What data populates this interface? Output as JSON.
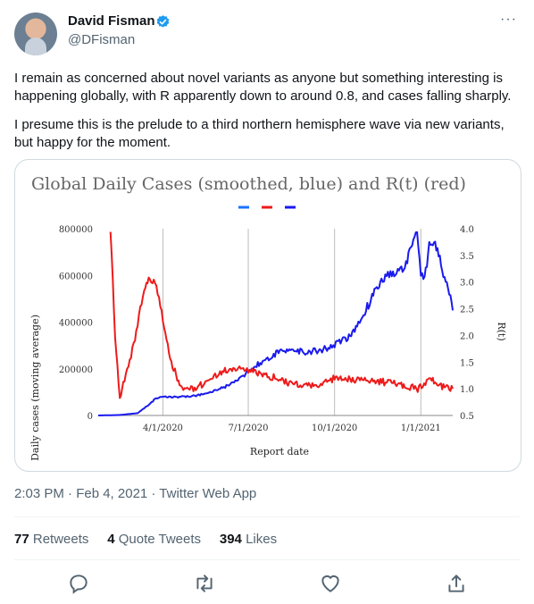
{
  "tweet": {
    "author_name": "David Fisman",
    "author_handle": "@DFisman",
    "paragraphs": [
      "I remain as concerned about novel variants as anyone but something interesting is happening globally, with R apparently down to around 0.8, and cases falling sharply.",
      "I presume this is the prelude to a third northern hemisphere wave via new variants, but happy for the moment."
    ],
    "timestamp": "2:03 PM · Feb 4, 2021 · Twitter Web App",
    "stats": {
      "retweets_count": "77",
      "retweets_label": "Retweets",
      "quotes_count": "4",
      "quotes_label": "Quote Tweets",
      "likes_count": "394",
      "likes_label": "Likes"
    },
    "colors": {
      "verified": "#1d9bf0",
      "text": "#0f1419",
      "secondary": "#536471",
      "border": "#cfd9de"
    },
    "icons": [
      "verified-badge-icon",
      "more-icon",
      "reply-icon",
      "retweet-icon",
      "like-icon",
      "share-icon"
    ]
  },
  "chart_data": {
    "type": "line",
    "title": "Global Daily Cases (smoothed, blue) and R(t) (red)",
    "xlabel": "Report date",
    "ylabel": "Daily cases (moving average)",
    "y2label": "R(t)",
    "x_ticks": [
      "4/1/2020",
      "7/1/2020",
      "10/1/2020",
      "1/1/2021"
    ],
    "y_ticks": [
      "0",
      "200000",
      "400000",
      "600000",
      "800000"
    ],
    "y2_ticks": [
      "0.5",
      "1.0",
      "1.5",
      "2.0",
      "2.5",
      "3.0",
      "3.5",
      "4.0"
    ],
    "ylim": [
      0,
      800000
    ],
    "y2lim": [
      0.5,
      4.0
    ],
    "xlim": [
      "2020-01-23",
      "2021-02-04"
    ],
    "legend": "top-center",
    "grid": "vertical",
    "series": [
      {
        "color": "#1a1aee",
        "axis": "left",
        "x": [
          "2020-01-23",
          "2020-02-15",
          "2020-03-05",
          "2020-03-15",
          "2020-03-25",
          "2020-04-05",
          "2020-04-20",
          "2020-05-05",
          "2020-05-20",
          "2020-06-05",
          "2020-06-20",
          "2020-07-01",
          "2020-07-15",
          "2020-08-01",
          "2020-08-15",
          "2020-09-01",
          "2020-09-15",
          "2020-10-01",
          "2020-10-15",
          "2020-10-25",
          "2020-11-01",
          "2020-11-10",
          "2020-11-20",
          "2020-12-01",
          "2020-12-10",
          "2020-12-15",
          "2020-12-20",
          "2020-12-28",
          "2021-01-01",
          "2021-01-05",
          "2021-01-10",
          "2021-01-15",
          "2021-01-20",
          "2021-01-25",
          "2021-01-30",
          "2021-02-04"
        ],
        "values": [
          0,
          2000,
          10000,
          40000,
          75000,
          80000,
          80000,
          85000,
          95000,
          120000,
          150000,
          190000,
          230000,
          270000,
          280000,
          270000,
          280000,
          300000,
          330000,
          380000,
          430000,
          510000,
          580000,
          610000,
          620000,
          640000,
          700000,
          780000,
          600000,
          580000,
          730000,
          740000,
          690000,
          600000,
          560000,
          450000
        ]
      },
      {
        "color": "#ee1a1a",
        "axis": "right",
        "x": [
          "2020-02-05",
          "2020-02-10",
          "2020-02-15",
          "2020-02-20",
          "2020-02-27",
          "2020-03-05",
          "2020-03-12",
          "2020-03-18",
          "2020-03-25",
          "2020-04-01",
          "2020-04-10",
          "2020-04-20",
          "2020-05-01",
          "2020-05-15",
          "2020-06-01",
          "2020-06-15",
          "2020-07-01",
          "2020-07-15",
          "2020-08-01",
          "2020-08-15",
          "2020-09-01",
          "2020-09-15",
          "2020-10-01",
          "2020-10-15",
          "2020-11-01",
          "2020-11-15",
          "2020-12-01",
          "2020-12-15",
          "2020-12-30",
          "2021-01-10",
          "2021-01-20",
          "2021-01-30",
          "2021-02-04"
        ],
        "values": [
          4.0,
          2.0,
          0.8,
          1.2,
          1.6,
          2.2,
          2.9,
          3.1,
          2.9,
          2.3,
          1.5,
          1.05,
          1.0,
          1.1,
          1.3,
          1.4,
          1.35,
          1.25,
          1.2,
          1.1,
          1.05,
          1.1,
          1.2,
          1.2,
          1.15,
          1.15,
          1.1,
          1.05,
          1.0,
          1.2,
          1.05,
          1.0,
          1.0
        ]
      }
    ]
  }
}
